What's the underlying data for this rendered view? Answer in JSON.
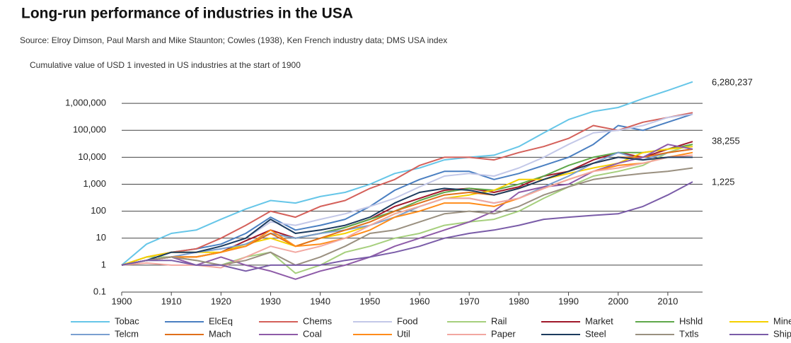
{
  "chart_data": {
    "type": "line",
    "title": "Long-run performance of industries in the USA",
    "source": "Source: Elroy Dimson, Paul Marsh and Mike Staunton; Cowles (1938), Ken French industry data; DMS USA index",
    "subtitle": "Cumulative value of USD 1 invested in US industries at the start of 1900",
    "annotations": [
      "6,280,237",
      "38,255",
      "1,225"
    ],
    "log_scale": true,
    "grid": true,
    "legend": "bottom",
    "xlim": [
      1900,
      2016
    ],
    "xticks": [
      1900,
      1910,
      1920,
      1930,
      1940,
      1950,
      1960,
      1970,
      1980,
      1990,
      2000,
      2010
    ],
    "ylim": [
      0.1,
      10000000
    ],
    "yticks": [
      0.1,
      1,
      10,
      100,
      {
        "value": 1000,
        "label": "1,000"
      },
      {
        "value": 10000,
        "label": "10,000"
      },
      {
        "value": 100000,
        "label": "100,000"
      },
      {
        "value": 1000000,
        "label": "1,000,000"
      }
    ],
    "x": [
      1900,
      1905,
      1910,
      1915,
      1920,
      1925,
      1930,
      1935,
      1940,
      1945,
      1950,
      1955,
      1960,
      1965,
      1970,
      1975,
      1980,
      1985,
      1990,
      1995,
      2000,
      2005,
      2010,
      2015
    ],
    "series": [
      {
        "name": "Tobac",
        "color": "#66c6e8",
        "values": [
          1,
          6,
          15,
          20,
          50,
          120,
          250,
          200,
          350,
          500,
          1000,
          2500,
          4000,
          8000,
          10000,
          12000,
          25000,
          80000,
          250000,
          500000,
          700000,
          1500000,
          3000000,
          6280237
        ]
      },
      {
        "name": "ElcEq",
        "color": "#4a7fc1",
        "values": [
          1,
          1.5,
          3,
          4,
          6,
          15,
          60,
          20,
          30,
          50,
          150,
          600,
          1500,
          3000,
          3000,
          1500,
          2500,
          5000,
          10000,
          30000,
          150000,
          100000,
          200000,
          400000
        ]
      },
      {
        "name": "Chems",
        "color": "#d4605a",
        "values": [
          1,
          2,
          3,
          4,
          10,
          30,
          100,
          60,
          150,
          250,
          700,
          1500,
          5000,
          10000,
          10000,
          8000,
          15000,
          25000,
          50000,
          150000,
          100000,
          200000,
          300000,
          450000
        ]
      },
      {
        "name": "Food",
        "color": "#c3c8e8",
        "values": [
          1,
          1.5,
          2,
          3,
          5,
          10,
          40,
          30,
          50,
          80,
          150,
          300,
          800,
          2000,
          2500,
          2000,
          4000,
          10000,
          30000,
          80000,
          100000,
          150000,
          300000,
          400000
        ]
      },
      {
        "name": "Rail",
        "color": "#a6cf7d",
        "values": [
          1,
          2,
          2,
          1.5,
          1,
          2,
          3,
          0.5,
          1,
          3,
          5,
          10,
          15,
          30,
          40,
          50,
          100,
          300,
          800,
          2000,
          3000,
          5000,
          15000,
          30000
        ]
      },
      {
        "name": "Market",
        "color": "#a0182a",
        "values": [
          1,
          1.5,
          2,
          2,
          3,
          8,
          20,
          10,
          15,
          25,
          50,
          150,
          300,
          600,
          700,
          500,
          800,
          2000,
          3000,
          8000,
          15000,
          10000,
          20000,
          38255
        ]
      },
      {
        "name": "Hshld",
        "color": "#5fa84a",
        "values": [
          1,
          1.5,
          2,
          2,
          3,
          6,
          15,
          10,
          15,
          25,
          50,
          100,
          250,
          500,
          700,
          600,
          1000,
          2000,
          5000,
          10000,
          15000,
          15000,
          20000,
          30000
        ]
      },
      {
        "name": "Mines",
        "color": "#f5d000",
        "values": [
          1,
          2,
          3,
          3,
          3,
          6,
          10,
          5,
          10,
          15,
          30,
          80,
          150,
          300,
          400,
          600,
          1500,
          1500,
          2500,
          4000,
          6000,
          15000,
          20000,
          25000
        ]
      },
      {
        "name": "Telcm",
        "color": "#7a9fd0",
        "values": [
          1,
          1.5,
          2,
          3,
          4,
          6,
          15,
          10,
          15,
          20,
          30,
          60,
          150,
          300,
          300,
          200,
          300,
          800,
          2000,
          6000,
          15000,
          8000,
          15000,
          20000
        ]
      },
      {
        "name": "Mach",
        "color": "#e0701a",
        "values": [
          1,
          1.5,
          2,
          2,
          3,
          5,
          15,
          5,
          10,
          20,
          40,
          100,
          200,
          400,
          500,
          400,
          700,
          1500,
          3000,
          6000,
          10000,
          10000,
          15000,
          20000
        ]
      },
      {
        "name": "Coal",
        "color": "#8e5ba8",
        "values": [
          1,
          1.5,
          2,
          1,
          2,
          1,
          0.6,
          0.3,
          0.6,
          1,
          2,
          5,
          10,
          20,
          40,
          100,
          500,
          800,
          1000,
          3000,
          6000,
          10000,
          30000,
          20000
        ]
      },
      {
        "name": "Util",
        "color": "#ff8c1a",
        "values": [
          1,
          1.5,
          2,
          2,
          3,
          5,
          20,
          5,
          6,
          10,
          20,
          60,
          100,
          200,
          200,
          150,
          300,
          700,
          1500,
          3000,
          5000,
          6000,
          10000,
          15000
        ]
      },
      {
        "name": "Paper",
        "color": "#f2a7a0",
        "values": [
          1,
          1.2,
          1,
          1,
          0.8,
          2,
          5,
          3,
          5,
          10,
          30,
          80,
          150,
          300,
          300,
          200,
          300,
          700,
          1500,
          3000,
          4000,
          6000,
          10000,
          12000
        ]
      },
      {
        "name": "Steel",
        "color": "#1c3b5e",
        "values": [
          1,
          1.5,
          3,
          3,
          5,
          10,
          50,
          15,
          20,
          30,
          60,
          200,
          500,
          700,
          600,
          400,
          700,
          1500,
          3000,
          6000,
          10000,
          8000,
          10000,
          10000
        ]
      },
      {
        "name": "Txtls",
        "color": "#9a9080",
        "values": [
          1,
          1.5,
          2,
          1.5,
          1,
          1.5,
          3,
          1,
          2,
          5,
          15,
          20,
          40,
          80,
          100,
          80,
          150,
          400,
          800,
          1500,
          2000,
          2500,
          3000,
          4000
        ]
      },
      {
        "name": "Ships",
        "color": "#7a5ca8",
        "values": [
          1,
          1.5,
          1.5,
          1,
          1,
          0.6,
          1,
          1,
          1,
          1.5,
          2,
          3,
          5,
          10,
          15,
          20,
          30,
          50,
          60,
          70,
          80,
          150,
          400,
          1225
        ]
      }
    ]
  }
}
